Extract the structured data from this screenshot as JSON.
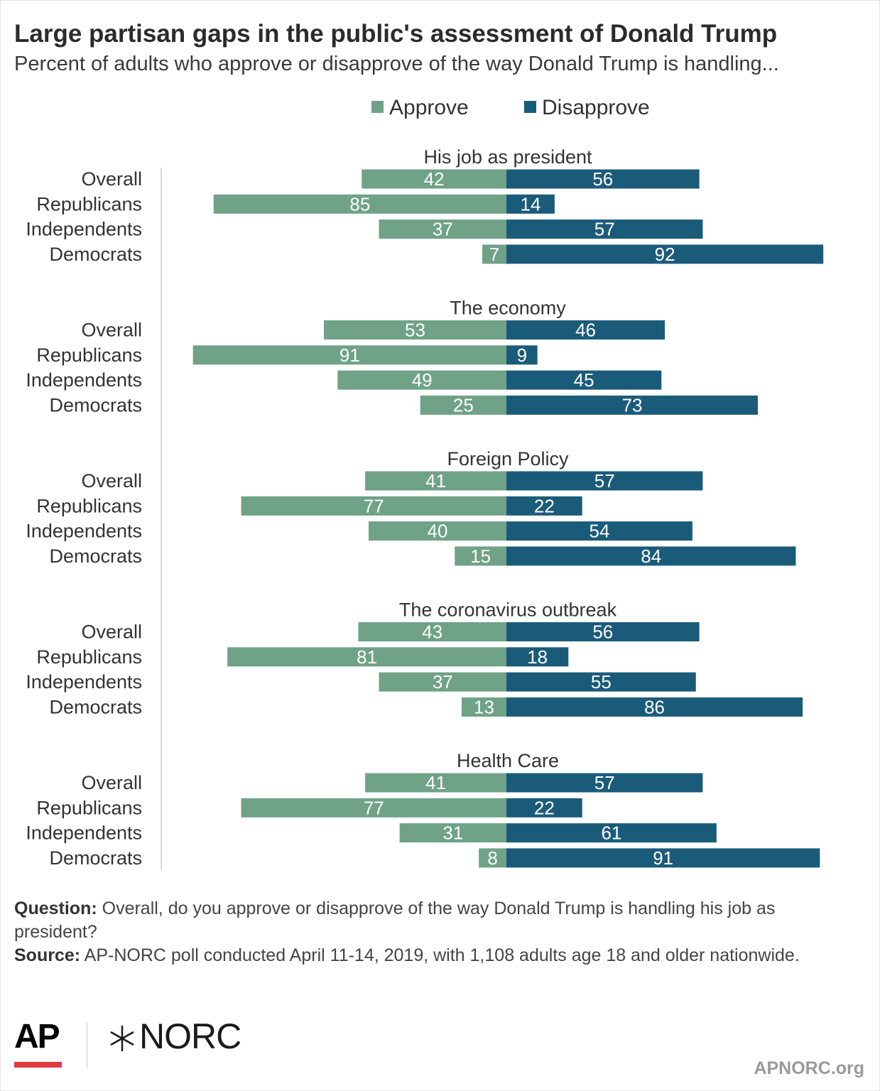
{
  "title": "Large partisan gaps in the public's assessment of Donald Trump",
  "subtitle": "Percent of adults who approve or disapprove of the way Donald Trump is handling...",
  "colors": {
    "approve": "#6fa287",
    "disapprove": "#1b5b7a",
    "label_text": "#ffffff",
    "axis": "#d9d9d9",
    "ap_red": "#e03a3e"
  },
  "chart_data": {
    "type": "bar",
    "orientation": "horizontal-diverging",
    "legend": [
      {
        "name": "Approve",
        "color": "#6fa287"
      },
      {
        "name": "Disapprove",
        "color": "#1b5b7a"
      }
    ],
    "legend_position": "top",
    "categories": [
      "Overall",
      "Republicans",
      "Independents",
      "Democrats"
    ],
    "panels": [
      {
        "title": "His job as president",
        "series": [
          {
            "name": "Approve",
            "values": [
              42,
              85,
              37,
              7
            ]
          },
          {
            "name": "Disapprove",
            "values": [
              56,
              14,
              57,
              92
            ]
          }
        ]
      },
      {
        "title": "The economy",
        "series": [
          {
            "name": "Approve",
            "values": [
              53,
              91,
              49,
              25
            ]
          },
          {
            "name": "Disapprove",
            "values": [
              46,
              9,
              45,
              73
            ]
          }
        ]
      },
      {
        "title": "Foreign Policy",
        "series": [
          {
            "name": "Approve",
            "values": [
              41,
              77,
              40,
              15
            ]
          },
          {
            "name": "Disapprove",
            "values": [
              57,
              22,
              54,
              84
            ]
          }
        ]
      },
      {
        "title": "The coronavirus outbreak",
        "series": [
          {
            "name": "Approve",
            "values": [
              43,
              81,
              37,
              13
            ]
          },
          {
            "name": "Disapprove",
            "values": [
              56,
              18,
              55,
              86
            ]
          }
        ]
      },
      {
        "title": "Health Care",
        "series": [
          {
            "name": "Approve",
            "values": [
              41,
              77,
              31,
              8
            ]
          },
          {
            "name": "Disapprove",
            "values": [
              57,
              22,
              61,
              91
            ]
          }
        ]
      }
    ],
    "xlim": [
      -100,
      100
    ],
    "grid": false
  },
  "footer": {
    "question_label": "Question:",
    "question_text": " Overall, do you approve or disapprove of the way Donald Trump is handling his job as president?",
    "source_label": "Source:",
    "source_text": " AP-NORC poll conducted April 11-14, 2019, with 1,108 adults age 18 and older nationwide."
  },
  "logos": {
    "ap": "AP",
    "norc": "NORC",
    "site": "APNORC.org"
  }
}
